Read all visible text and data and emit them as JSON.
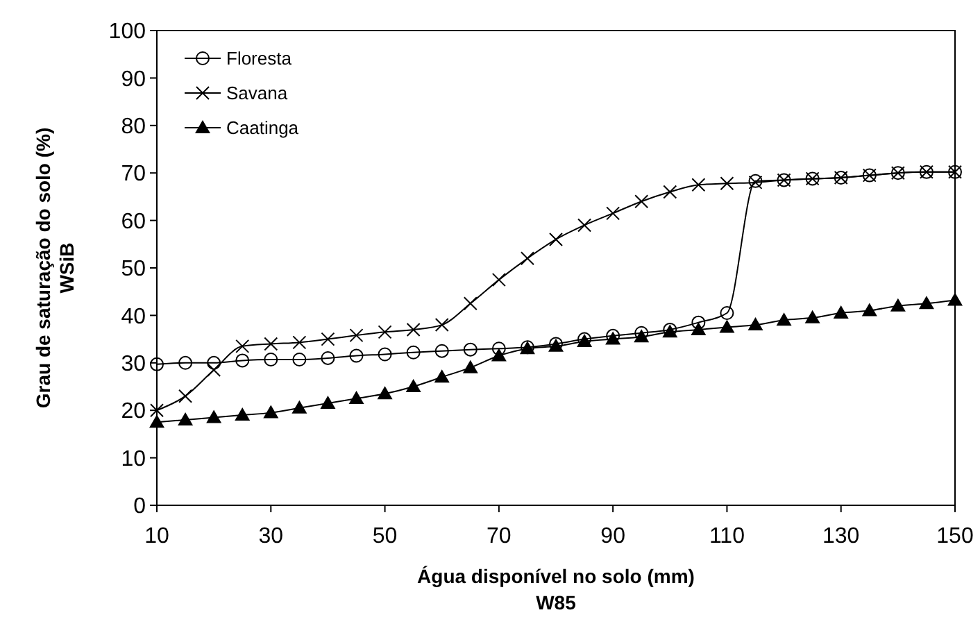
{
  "chart_data": {
    "type": "line",
    "xlabel": "Água disponível no solo (mm)\nW85",
    "ylabel": "Grau de saturação do solo (%)\nWSiB",
    "x": [
      10,
      15,
      20,
      25,
      30,
      35,
      40,
      45,
      50,
      55,
      60,
      65,
      70,
      75,
      80,
      85,
      90,
      95,
      100,
      105,
      110,
      115,
      120,
      125,
      130,
      135,
      140,
      145,
      150
    ],
    "xlim": [
      10,
      150
    ],
    "xticks": [
      10,
      30,
      50,
      70,
      90,
      110,
      130,
      150
    ],
    "ylim": [
      0,
      100
    ],
    "yticks": [
      0,
      10,
      20,
      30,
      40,
      50,
      60,
      70,
      80,
      90,
      100
    ],
    "grid": false,
    "legend": "top left",
    "line_style": "solid",
    "series": [
      {
        "name": "Floresta",
        "color": "#000000",
        "marker": "circle",
        "values": [
          29.7,
          30,
          30,
          30.5,
          30.7,
          30.7,
          31,
          31.5,
          31.8,
          32.2,
          32.5,
          32.8,
          33,
          33.3,
          34,
          35,
          35.7,
          36.3,
          37,
          38.5,
          40.5,
          68.3,
          68.5,
          68.8,
          69,
          69.5,
          70,
          70.2,
          70.2
        ]
      },
      {
        "name": "Savana",
        "color": "#000000",
        "marker": "cross",
        "values": [
          20,
          23,
          28.5,
          33.5,
          34,
          34.3,
          35,
          35.8,
          36.5,
          37,
          38,
          42.5,
          47.5,
          52,
          56,
          59,
          61.5,
          64,
          66,
          67.5,
          67.8,
          68,
          68.5,
          68.8,
          69,
          69.5,
          70,
          70.2,
          70.2
        ]
      },
      {
        "name": "Caatinga",
        "color": "#000000",
        "marker": "triangle",
        "values": [
          17.5,
          18,
          18.5,
          19,
          19.5,
          20.5,
          21.5,
          22.5,
          23.5,
          25,
          27,
          29,
          31.5,
          33,
          33.5,
          34.5,
          35,
          35.5,
          36.5,
          37,
          37.5,
          38,
          39,
          39.5,
          40.5,
          41,
          42,
          42.5,
          43.2
        ]
      }
    ]
  }
}
